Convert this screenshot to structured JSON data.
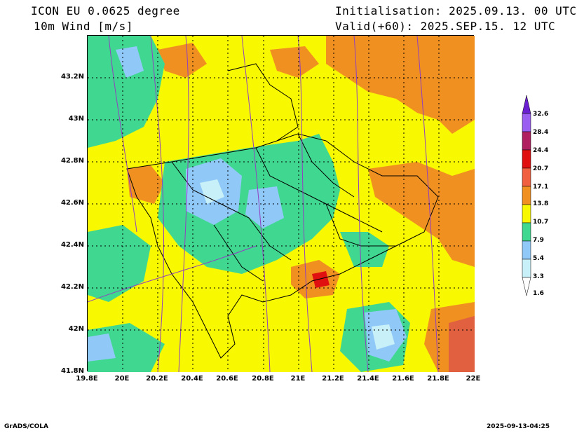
{
  "header": {
    "title_line1": "ICON EU 0.0625 degree",
    "title_line2": "10m Wind [m/s]",
    "initialisation": "Initialisation: 2025.09.13. 00 UTC",
    "valid": "Valid(+60): 2025.SEP.15. 12 UTC"
  },
  "axes": {
    "lat_labels": [
      "43.2N",
      "43N",
      "42.8N",
      "42.6N",
      "42.4N",
      "42.2N",
      "42N",
      "41.8N"
    ],
    "lon_labels": [
      "19.8E",
      "20E",
      "20.2E",
      "20.4E",
      "20.6E",
      "20.8E",
      "21E",
      "21.2E",
      "21.4E",
      "21.6E",
      "21.8E",
      "22E"
    ],
    "lat_range": [
      41.8,
      43.4
    ],
    "lon_range": [
      19.8,
      22.0
    ]
  },
  "colorbar": {
    "levels": [
      "32.6",
      "28.4",
      "24.4",
      "20.7",
      "17.1",
      "13.8",
      "10.7",
      "7.9",
      "5.4",
      "3.3",
      "1.6"
    ],
    "colors": [
      "#6a1fd0",
      "#9a5ef0",
      "#b02060",
      "#e01010",
      "#f06040",
      "#f09020",
      "#f8f800",
      "#40d890",
      "#90c8f8",
      "#c8f0f8",
      "#ffffff"
    ]
  },
  "footer": {
    "left": "GrADS/COLA",
    "right": "2025-09-13-04:25"
  }
}
